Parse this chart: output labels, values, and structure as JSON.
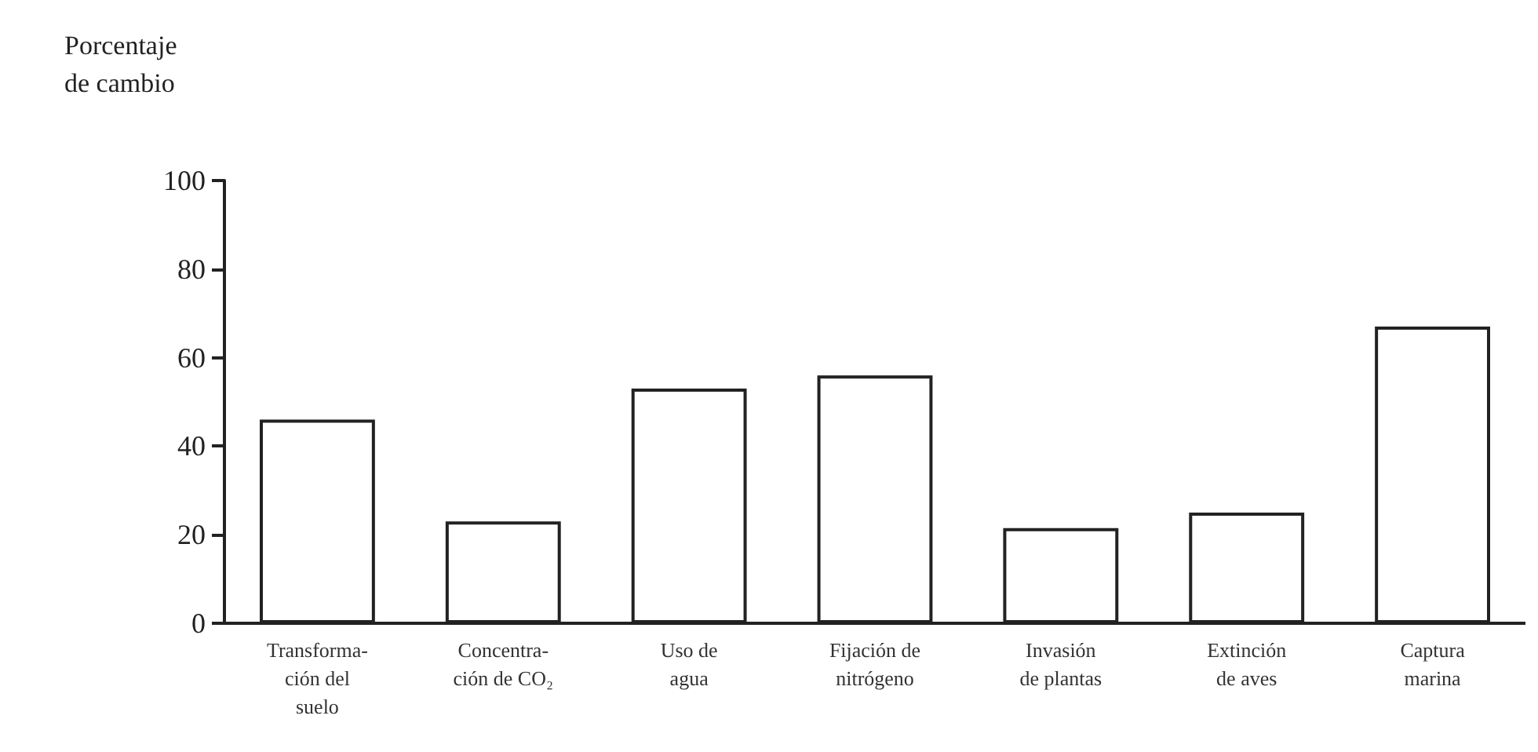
{
  "chart_data": {
    "type": "bar",
    "ylabel": "Porcentaje\nde cambio",
    "categories": [
      "Transforma-\nción del\nsuelo",
      "Concentra-\nción de CO₂",
      "Uso de\nagua",
      "Fijación de\nnitrógeno",
      "Invasión\nde plantas",
      "Extinción\nde aves",
      "Captura\nmarina"
    ],
    "values": [
      46,
      23,
      53,
      56,
      21.5,
      25,
      67
    ],
    "color": "#ffffff",
    "ylim": [
      0,
      100
    ],
    "yticks": [
      0,
      20,
      40,
      60,
      80,
      100
    ],
    "grid": false
  }
}
